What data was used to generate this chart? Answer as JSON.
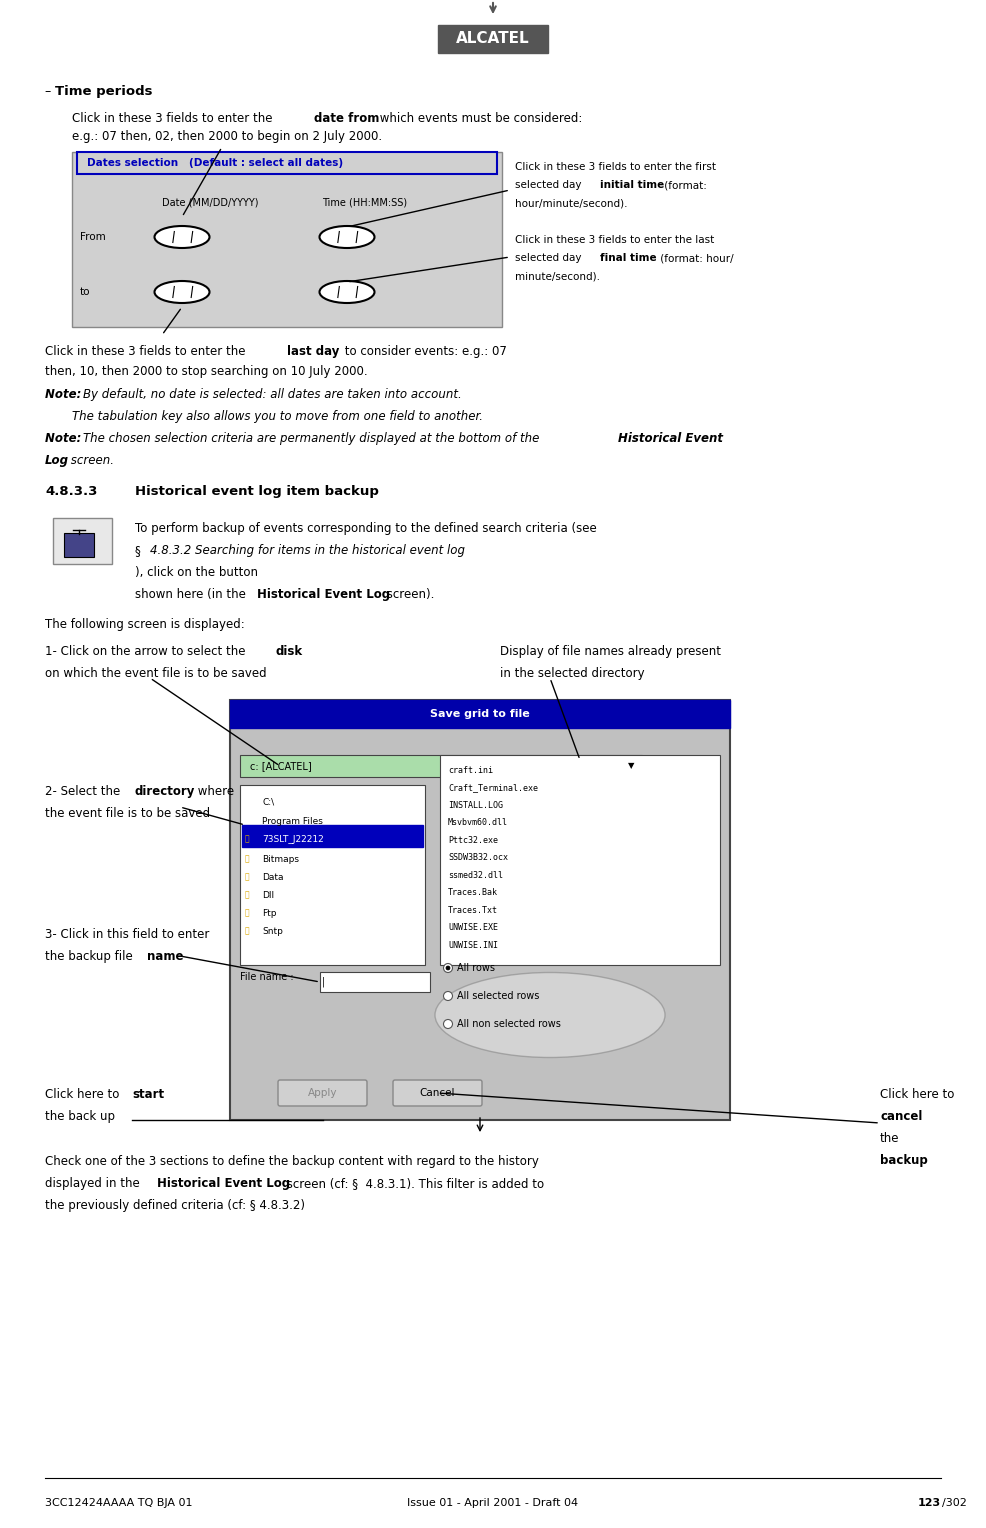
{
  "page_width": 9.86,
  "page_height": 15.28,
  "bg_color": "#ffffff",
  "footer_left": "3CC12424AAAA TQ BJA 01",
  "footer_center": "Issue 01 - April 2001 - Draft 04",
  "footer_right": "123/302",
  "header_logo_text": "ALCATEL",
  "section_bullet": "–  Time periods.",
  "para1_line1_pre": "Click in these 3 fields to enter the ",
  "para1_line1_bold": "date from",
  "para1_line1_post": " which events must be considered:",
  "para1_line2": "e.g.: 07 then, 02, then 2000 to begin on 2 July 2000.",
  "callout_right1_line1": "Click in these 3 fields to enter the first",
  "callout_right1_line2_pre": "selected day ",
  "callout_right1_line2_bold": "initial time",
  "callout_right1_line2_post": " (format:",
  "callout_right1_line3": "hour/minute/second).",
  "callout_right2_line1": "Click in these 3 fields to enter the last",
  "callout_right2_line2_pre": "selected day ",
  "callout_right2_line2_bold": "final time",
  "callout_right2_line2_post": " (format: hour/",
  "callout_right2_line3": "minute/second).",
  "callout_bottom_line1_pre": "Click in these 3 fields to enter the ",
  "callout_bottom_line1_bold": "last day",
  "callout_bottom_line1_post": " to consider events: e.g.: 07",
  "callout_bottom_line2": "then, 10, then 2000 to stop searching on 10 July 2000.",
  "note1_pre": "Note: ",
  "note1_bold": "",
  "note1_text1": "By default, no date is selected: all dates are taken into account.",
  "note1_text2": "The tabulation key also allows you to move from one field to another.",
  "note2_pre": "Note: ",
  "note2_text": "The chosen selection criteria are permanently displayed at the bottom of the ",
  "note2_bold": "Historical Event",
  "note2_text2": "Log",
  "note2_text3": " screen.",
  "section433_num": "4.8.3.3",
  "section433_title": "Historical event log item backup",
  "backup_para1": "To perform backup of events corresponding to the defined search criteria (see",
  "backup_para2_pre": "§  ",
  "backup_para2_italic": "4.8.3.2 Searching for items in the historical event log",
  "backup_para2_post": "), click on the button",
  "backup_para3_pre": "shown here (in the ",
  "backup_para3_bold": "Historical Event Log",
  "backup_para3_post": " screen).",
  "following_screen": "The following screen is displayed:",
  "label1_pre": "1- Click on the arrow to select the ",
  "label1_bold": "disk",
  "label1_line2": "on which the event file is to be saved",
  "label_display_line1": "Display of file names already present",
  "label_display_line2": "in the selected directory",
  "label2_pre": "2- Select the ",
  "label2_bold": "directory",
  "label2_post": " where",
  "label2_line2": "the event file is to be saved",
  "label3_pre": "3- Click in this field to enter",
  "label3_line2_pre": "the backup file ",
  "label3_line2_bold": "name",
  "label_start_pre": "Click here to ",
  "label_start_bold": "start",
  "label_start_line2": "the back up",
  "label_cancel_pre": "Click here to",
  "label_cancel_bold": "cancel",
  "label_cancel_post": " the",
  "label_cancel_line3": "backup",
  "check_label": "Check one of the 3 sections to define the backup content with regard to the history",
  "check_label2": "displayed in the ",
  "check_label2_bold": "Historical Event Log",
  "check_label2_post": " screen (cf: §  4.8.3.1). This filter is added to",
  "check_label3_pre": "the previously defined criteria (cf: § 4.8.3.2)"
}
